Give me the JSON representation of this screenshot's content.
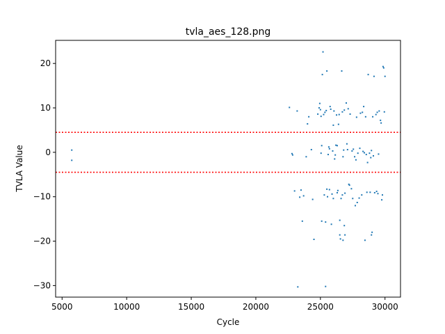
{
  "chart_data": {
    "type": "scatter",
    "title": "tvla_aes_128.png",
    "xlabel": "Cycle",
    "ylabel": "TVLA Value",
    "xlim": [
      4500,
      31200
    ],
    "ylim": [
      -32.6,
      25.2
    ],
    "xticks": [
      5000,
      10000,
      15000,
      20000,
      25000,
      30000
    ],
    "yticks": [
      -30,
      -20,
      -10,
      0,
      10,
      20
    ],
    "ytick_labels": [
      "−30",
      "−20",
      "−10",
      "0",
      "10",
      "20"
    ],
    "grid": false,
    "thresholds": [
      4.5,
      -4.5
    ],
    "colors": {
      "points": "#1f77b4",
      "threshold": "#ff0000",
      "axes": "#000000"
    },
    "points": [
      [
        5750,
        0.5
      ],
      [
        5750,
        -1.8
      ],
      [
        22600,
        10.1
      ],
      [
        22800,
        -0.3
      ],
      [
        22850,
        -0.6
      ],
      [
        23000,
        -8.7
      ],
      [
        23200,
        9.3
      ],
      [
        23250,
        -30.3
      ],
      [
        23400,
        -10.1
      ],
      [
        23500,
        -8.5
      ],
      [
        23600,
        -15.5
      ],
      [
        23700,
        -9.8
      ],
      [
        23900,
        -1.0
      ],
      [
        24000,
        6.4
      ],
      [
        24100,
        8.0
      ],
      [
        24300,
        0.6
      ],
      [
        24400,
        -10.6
      ],
      [
        24500,
        -19.6
      ],
      [
        24800,
        8.6
      ],
      [
        24900,
        10.0
      ],
      [
        24950,
        11.0
      ],
      [
        25000,
        9.6
      ],
      [
        25050,
        8.1
      ],
      [
        25100,
        1.5
      ],
      [
        25050,
        -0.2
      ],
      [
        25100,
        -15.5
      ],
      [
        25150,
        17.5
      ],
      [
        25200,
        22.6
      ],
      [
        25250,
        8.5
      ],
      [
        25300,
        -9.6
      ],
      [
        25350,
        9.0
      ],
      [
        25400,
        -15.7
      ],
      [
        25400,
        -30.2
      ],
      [
        25450,
        9.4
      ],
      [
        25500,
        18.3
      ],
      [
        25500,
        -8.3
      ],
      [
        25550,
        -10.0
      ],
      [
        25600,
        -0.5
      ],
      [
        25650,
        1.2
      ],
      [
        25700,
        0.8
      ],
      [
        25700,
        -8.4
      ],
      [
        25750,
        10.3
      ],
      [
        25800,
        9.7
      ],
      [
        25850,
        -16.2
      ],
      [
        25900,
        -9.4
      ],
      [
        25950,
        0.3
      ],
      [
        26000,
        -10.4
      ],
      [
        26000,
        6.1
      ],
      [
        26050,
        9.3
      ],
      [
        26100,
        -1.5
      ],
      [
        26150,
        -0.6
      ],
      [
        26200,
        1.6
      ],
      [
        26250,
        8.4
      ],
      [
        26300,
        1.5
      ],
      [
        26300,
        -9.1
      ],
      [
        26350,
        -8.6
      ],
      [
        26400,
        6.3
      ],
      [
        26450,
        8.5
      ],
      [
        26500,
        -15.3
      ],
      [
        26500,
        -18.6
      ],
      [
        26550,
        -19.5
      ],
      [
        26600,
        -10.4
      ],
      [
        26650,
        18.3
      ],
      [
        26700,
        9.1
      ],
      [
        26700,
        -9.6
      ],
      [
        26750,
        -1.0
      ],
      [
        26750,
        -19.8
      ],
      [
        26800,
        0.5
      ],
      [
        26850,
        9.5
      ],
      [
        26850,
        -16.5
      ],
      [
        26900,
        -9.2
      ],
      [
        26900,
        -18.6
      ],
      [
        27000,
        11.1
      ],
      [
        27050,
        1.9
      ],
      [
        27100,
        0.6
      ],
      [
        27150,
        9.8
      ],
      [
        27200,
        -7.2
      ],
      [
        27250,
        -7.4
      ],
      [
        27300,
        8.6
      ],
      [
        27400,
        -8.2
      ],
      [
        27450,
        0.3
      ],
      [
        27500,
        -10.4
      ],
      [
        27550,
        0.7
      ],
      [
        27650,
        -1.0
      ],
      [
        27700,
        -12.0
      ],
      [
        27750,
        -1.7
      ],
      [
        27800,
        7.9
      ],
      [
        27850,
        -11.3
      ],
      [
        27900,
        -0.2
      ],
      [
        28000,
        -10.3
      ],
      [
        28050,
        0.9
      ],
      [
        28100,
        8.8
      ],
      [
        28200,
        -9.6
      ],
      [
        28250,
        9.0
      ],
      [
        28300,
        0.2
      ],
      [
        28350,
        10.3
      ],
      [
        28400,
        -0.1
      ],
      [
        28450,
        -19.8
      ],
      [
        28500,
        8.0
      ],
      [
        28550,
        -0.5
      ],
      [
        28600,
        -9.0
      ],
      [
        28650,
        -2.3
      ],
      [
        28700,
        17.5
      ],
      [
        28800,
        -0.2
      ],
      [
        28850,
        -9.0
      ],
      [
        28900,
        -1.2
      ],
      [
        28950,
        0.4
      ],
      [
        28950,
        -18.6
      ],
      [
        29000,
        -18.0
      ],
      [
        29050,
        8.0
      ],
      [
        29100,
        -0.8
      ],
      [
        29150,
        17.1
      ],
      [
        29200,
        -9.1
      ],
      [
        29300,
        8.5
      ],
      [
        29350,
        -8.8
      ],
      [
        29400,
        9.0
      ],
      [
        29450,
        -9.3
      ],
      [
        29500,
        -0.4
      ],
      [
        29550,
        9.3
      ],
      [
        29650,
        7.2
      ],
      [
        29700,
        6.6
      ],
      [
        29750,
        -10.7
      ],
      [
        29800,
        -9.6
      ],
      [
        29850,
        19.3
      ],
      [
        29900,
        19.0
      ],
      [
        29950,
        9.1
      ],
      [
        30000,
        17.1
      ]
    ]
  }
}
